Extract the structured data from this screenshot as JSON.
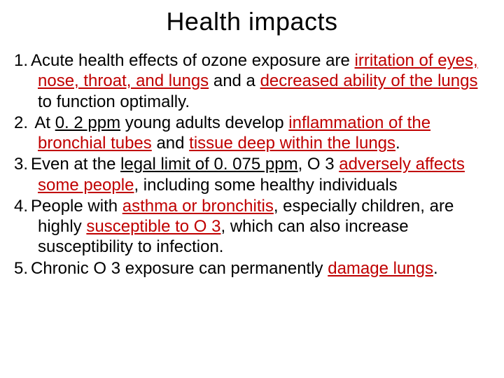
{
  "title": "Health impacts",
  "text_color": "#000000",
  "highlight_color": "#c00000",
  "background_color": "#ffffff",
  "title_fontsize": 36,
  "body_fontsize": 24,
  "items": [
    {
      "num": "1.",
      "pre": "Acute health effects of ozone exposure are ",
      "hl1": "irritation of eyes, nose, throat, and lungs",
      "mid": " and a ",
      "hl2": "decreased ability of the lungs",
      "post": " to function optimally."
    },
    {
      "num": "2.",
      "pre": " At ",
      "u1": "0. 2 ppm",
      "mid": " young adults develop ",
      "hl1": "inflammation of the bronchial tubes",
      "mid2": " and ",
      "hl2": "tissue deep within the lungs",
      "post": "."
    },
    {
      "num": "3.",
      "pre": "Even at the ",
      "u1": "legal limit of 0. 075 ppm",
      "mid": ", O 3 ",
      "hl1": "adversely affects some people",
      "post": ", including some healthy individuals"
    },
    {
      "num": "4.",
      "pre": "People with ",
      "hl1": "asthma or bronchitis",
      "mid": ", especially children, are highly ",
      "hl2": "susceptible to O 3",
      "post": ", which can also increase susceptibility to infection."
    },
    {
      "num": "5.",
      "pre": "Chronic O 3 exposure can permanently ",
      "hl1": "damage lungs",
      "post": "."
    }
  ]
}
